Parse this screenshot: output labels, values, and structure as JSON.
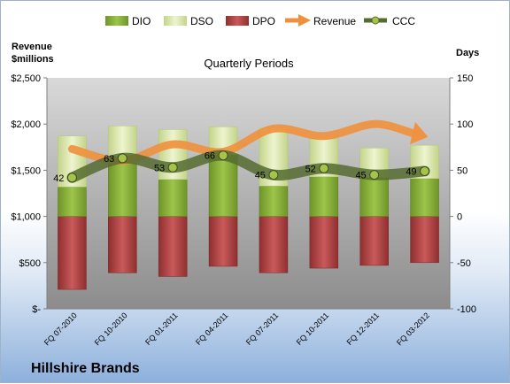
{
  "chart_data": {
    "type": "bar",
    "title": "Quarterly Periods",
    "brand": "Hillshire Brands",
    "categories": [
      "FQ 07-2010",
      "FQ 10-2010",
      "FQ 01-2011",
      "FQ 04-2011",
      "FQ 07-2011",
      "FQ 10-2011",
      "FQ 12-2011",
      "FQ 03-2012"
    ],
    "left_axis": {
      "label_line1": "Revenue",
      "label_line2": "$millions",
      "ylim": [
        0,
        2500
      ],
      "ticks": [
        0,
        500,
        1000,
        1500,
        2000,
        2500
      ],
      "tick_labels": [
        "$-",
        "$500",
        "$1,000",
        "$1,500",
        "$2,000",
        "$2,500"
      ]
    },
    "right_axis": {
      "label": "Days",
      "ylim": [
        -100,
        150
      ],
      "ticks": [
        -100,
        -50,
        0,
        50,
        100,
        150
      ],
      "tick_labels": [
        "-100",
        "-50",
        "0",
        "50",
        "100",
        "150"
      ]
    },
    "series": [
      {
        "name": "DIO",
        "type": "stacked-bar-positive",
        "axis": "right",
        "color": "#8db33f",
        "values": [
          32,
          58,
          40,
          67,
          33,
          43,
          42,
          41
        ]
      },
      {
        "name": "DSO",
        "type": "stacked-bar-positive",
        "axis": "right",
        "color": "#d7e4a6",
        "values": [
          55,
          40,
          54,
          30,
          63,
          41,
          32,
          36
        ]
      },
      {
        "name": "DPO",
        "type": "bar-negative",
        "axis": "right",
        "color": "#b84a4a",
        "values": [
          -79,
          -61,
          -65,
          -54,
          -61,
          -56,
          -53,
          -50
        ]
      },
      {
        "name": "Revenue",
        "type": "line-arrow",
        "axis": "left",
        "color": "#f0903c",
        "values": [
          1730,
          1600,
          1780,
          1700,
          1950,
          1870,
          2000,
          1870
        ]
      },
      {
        "name": "CCC",
        "type": "line-markers",
        "axis": "right",
        "color": "#556b2f",
        "values": [
          42,
          63,
          53,
          66,
          45,
          52,
          45,
          49
        ],
        "labels": [
          "42",
          "63",
          "53",
          "66",
          "45",
          "52",
          "45",
          "49"
        ]
      }
    ],
    "legend": {
      "position": "top",
      "items": [
        "DIO",
        "DSO",
        "DPO",
        "Revenue",
        "CCC"
      ]
    },
    "grid": false
  }
}
